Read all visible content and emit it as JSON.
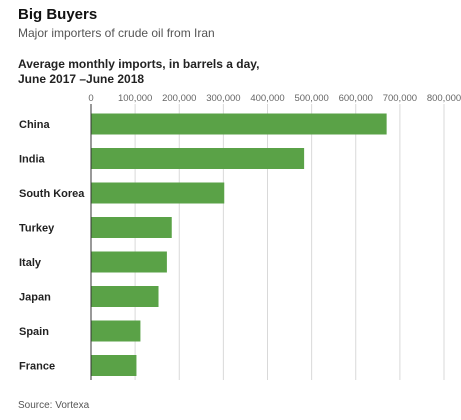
{
  "header": {
    "title": "Big Buyers",
    "subtitle": "Major importers of crude oil from Iran"
  },
  "footer": {
    "source": "Source: Vortexa"
  },
  "chart_data": {
    "type": "bar",
    "orientation": "horizontal",
    "title": "Average monthly imports, in barrels a day,",
    "subtitle": "June 2017 –June 2018",
    "categories": [
      "China",
      "India",
      "South Korea",
      "Turkey",
      "Italy",
      "Japan",
      "Spain",
      "France"
    ],
    "values": [
      670000,
      483000,
      302000,
      183000,
      172000,
      153000,
      112000,
      103000
    ],
    "xlim": [
      0,
      800000
    ],
    "ticks": [
      0,
      100000,
      200000,
      300000,
      400000,
      500000,
      600000,
      700000,
      800000
    ],
    "tick_labels": [
      "0",
      "100,000",
      "200,000",
      "300,000",
      "400,000",
      "500,000",
      "600,000",
      "700,000",
      "800,000"
    ],
    "grid": true,
    "bar_color": "#5aa247",
    "grid_color": "#d9d9d9"
  }
}
